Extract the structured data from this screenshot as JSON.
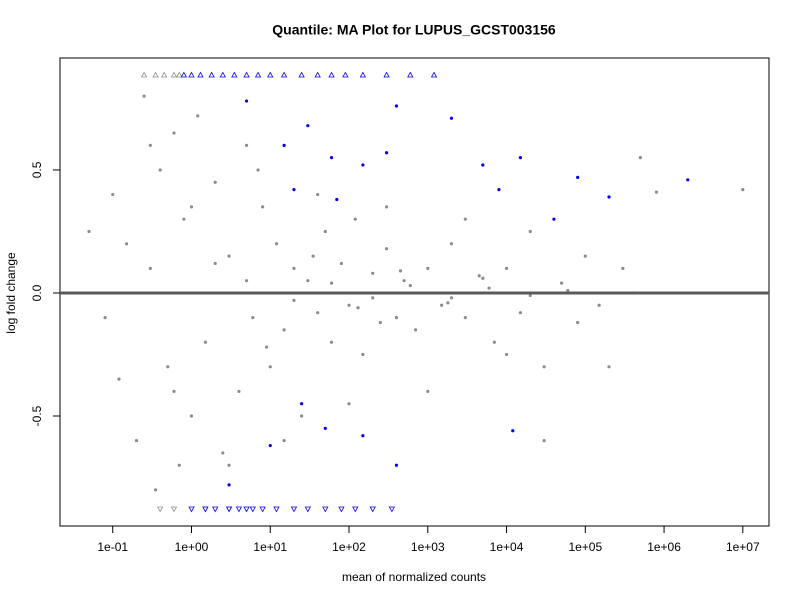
{
  "chart_data": {
    "type": "scatter",
    "title": "Quantile: MA Plot for LUPUS_GCST003156",
    "x_label": "mean of normalized counts",
    "y_label": "log fold change",
    "x_scale": "log",
    "xlim": [
      0.0214,
      21500000
    ],
    "ylim": [
      -0.947,
      0.955
    ],
    "xticks": [
      {
        "value": 0.1,
        "label": "1e-01"
      },
      {
        "value": 1,
        "label": "1e+00"
      },
      {
        "value": 10,
        "label": "1e+01"
      },
      {
        "value": 100,
        "label": "1e+02"
      },
      {
        "value": 1000,
        "label": "1e+03"
      },
      {
        "value": 10000,
        "label": "1e+04"
      },
      {
        "value": 100000,
        "label": "1e+05"
      },
      {
        "value": 1000000,
        "label": "1e+06"
      },
      {
        "value": 10000000,
        "label": "1e+07"
      }
    ],
    "yticks": [
      -0.5,
      {
        "value": 0,
        "label": "0.0"
      },
      0.5
    ],
    "hline": {
      "value": 0,
      "color": "#5a5a5a"
    },
    "series": [
      {
        "color": "#8c8c8c",
        "marker": "circle",
        "x": [
          0.05,
          0.08,
          0.1,
          0.12,
          0.15,
          0.2,
          0.25,
          0.3,
          0.35,
          0.4,
          0.5,
          0.6,
          0.7,
          0.8,
          1,
          1.2,
          1.5,
          2,
          2.5,
          3,
          4,
          5,
          6,
          8,
          10,
          12,
          15,
          20,
          25,
          30,
          40,
          50,
          60,
          80,
          100,
          120,
          150,
          200,
          250,
          300,
          400,
          500,
          700,
          1000,
          1500,
          2000,
          3000,
          5000,
          7000,
          10000,
          15000,
          20000,
          30000,
          50000,
          80000,
          100000,
          150000,
          300000,
          500000,
          800000,
          10000000,
          400000,
          200000,
          30000,
          0.3,
          0.6,
          1,
          3,
          7,
          15,
          40,
          100,
          300,
          1000,
          3000,
          10000,
          5,
          20,
          60,
          200,
          600,
          2000,
          6000,
          20000,
          60000,
          2,
          9,
          35,
          130,
          450,
          1800,
          4500
        ],
        "values": [
          0.25,
          -0.1,
          0.4,
          -0.35,
          0.2,
          -0.6,
          0.8,
          0.1,
          -0.8,
          0.5,
          -0.3,
          0.65,
          -0.7,
          0.3,
          -0.5,
          0.72,
          -0.2,
          0.45,
          -0.65,
          0.15,
          -0.4,
          0.6,
          -0.1,
          0.35,
          -0.3,
          0.2,
          -0.15,
          0.1,
          -0.5,
          0.05,
          -0.08,
          0.25,
          -0.2,
          0.12,
          -0.05,
          0.3,
          -0.25,
          0.08,
          -0.12,
          0.18,
          -0.1,
          0.05,
          -0.15,
          0.1,
          -0.05,
          0.2,
          -0.1,
          0.06,
          -0.2,
          0.1,
          -0.08,
          0.25,
          -0.3,
          0.04,
          -0.12,
          0.15,
          -0.05,
          0.1,
          0.55,
          0.41,
          0.42,
          0.0,
          -0.3,
          -0.6,
          0.6,
          -0.4,
          0.35,
          -0.7,
          0.5,
          -0.6,
          0.4,
          -0.45,
          0.35,
          -0.4,
          0.3,
          -0.25,
          0.05,
          -0.03,
          0.04,
          -0.02,
          0.03,
          -0.02,
          0.02,
          -0.01,
          0.01,
          0.12,
          -0.22,
          0.15,
          -0.06,
          0.09,
          -0.04,
          0.07
        ]
      },
      {
        "color": "#0000ee",
        "marker": "circle",
        "x": [
          30,
          15,
          60,
          150,
          300,
          2000,
          5000,
          15000,
          80000,
          2000000,
          200000,
          8000,
          40000,
          5,
          400,
          25,
          10,
          50,
          150,
          400,
          3,
          12000,
          20,
          70
        ],
        "values": [
          0.68,
          0.6,
          0.55,
          0.52,
          0.57,
          0.71,
          0.52,
          0.55,
          0.47,
          0.46,
          0.39,
          0.42,
          0.3,
          0.78,
          0.76,
          -0.45,
          -0.62,
          -0.55,
          -0.58,
          -0.7,
          -0.78,
          -0.56,
          0.42,
          0.38
        ]
      },
      {
        "color": "#8c8c8c",
        "marker": "triangle-up",
        "x": [
          0.25,
          0.35,
          0.45,
          0.6,
          0.7
        ],
        "values": [
          0.886,
          0.886,
          0.886,
          0.886,
          0.886
        ]
      },
      {
        "color": "#0000ee",
        "marker": "triangle-up",
        "x": [
          0.8,
          1,
          1.3,
          1.8,
          2.5,
          3.5,
          5,
          7,
          10,
          15,
          25,
          40,
          60,
          90,
          150,
          300,
          600,
          1200
        ],
        "values": [
          0.886,
          0.886,
          0.886,
          0.886,
          0.886,
          0.886,
          0.886,
          0.886,
          0.886,
          0.886,
          0.886,
          0.886,
          0.886,
          0.886,
          0.886,
          0.886,
          0.886,
          0.886
        ]
      },
      {
        "color": "#8c8c8c",
        "marker": "triangle-down",
        "x": [
          0.4,
          0.6,
          1.5,
          3
        ],
        "values": [
          -0.878,
          -0.878,
          -0.878,
          -0.878
        ]
      },
      {
        "color": "#0000ee",
        "marker": "triangle-down",
        "x": [
          1,
          1.5,
          2,
          3,
          4,
          5,
          6,
          8,
          12,
          20,
          30,
          50,
          80,
          120,
          200,
          350
        ],
        "values": [
          -0.878,
          -0.878,
          -0.878,
          -0.878,
          -0.878,
          -0.878,
          -0.878,
          -0.878,
          -0.878,
          -0.878,
          -0.878,
          -0.878,
          -0.878,
          -0.878,
          -0.878,
          -0.878
        ]
      }
    ]
  }
}
